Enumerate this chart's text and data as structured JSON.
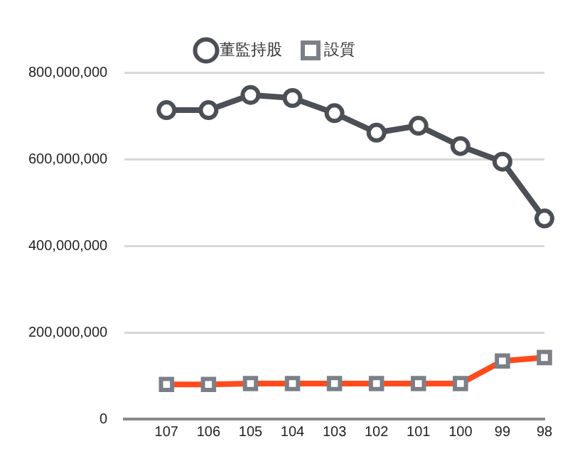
{
  "chart_data": {
    "type": "line",
    "categories": [
      "107",
      "106",
      "105",
      "104",
      "103",
      "102",
      "101",
      "100",
      "99",
      "98"
    ],
    "series": [
      {
        "name": "董監持股",
        "color": "#4b5056",
        "values": [
          713000000,
          713000000,
          748000000,
          741000000,
          706000000,
          661000000,
          677000000,
          630000000,
          594000000,
          463000000
        ],
        "marker": "circle"
      },
      {
        "name": "設質",
        "color": "#ff4a1c",
        "values": [
          80000000,
          80000000,
          82000000,
          82000000,
          82000000,
          82000000,
          82000000,
          82000000,
          134000000,
          142000000
        ],
        "marker": "square"
      }
    ],
    "ylim": [
      0,
      800000000
    ],
    "yticks": [
      0,
      {
        "value": 200000000,
        "label": "200,000,000"
      },
      {
        "value": 400000000,
        "label": "400,000,000"
      },
      {
        "value": 600000000,
        "label": "600,000,000"
      },
      {
        "value": 800000000,
        "label": "800,000,000"
      }
    ],
    "grid": "y",
    "legend": "top"
  }
}
